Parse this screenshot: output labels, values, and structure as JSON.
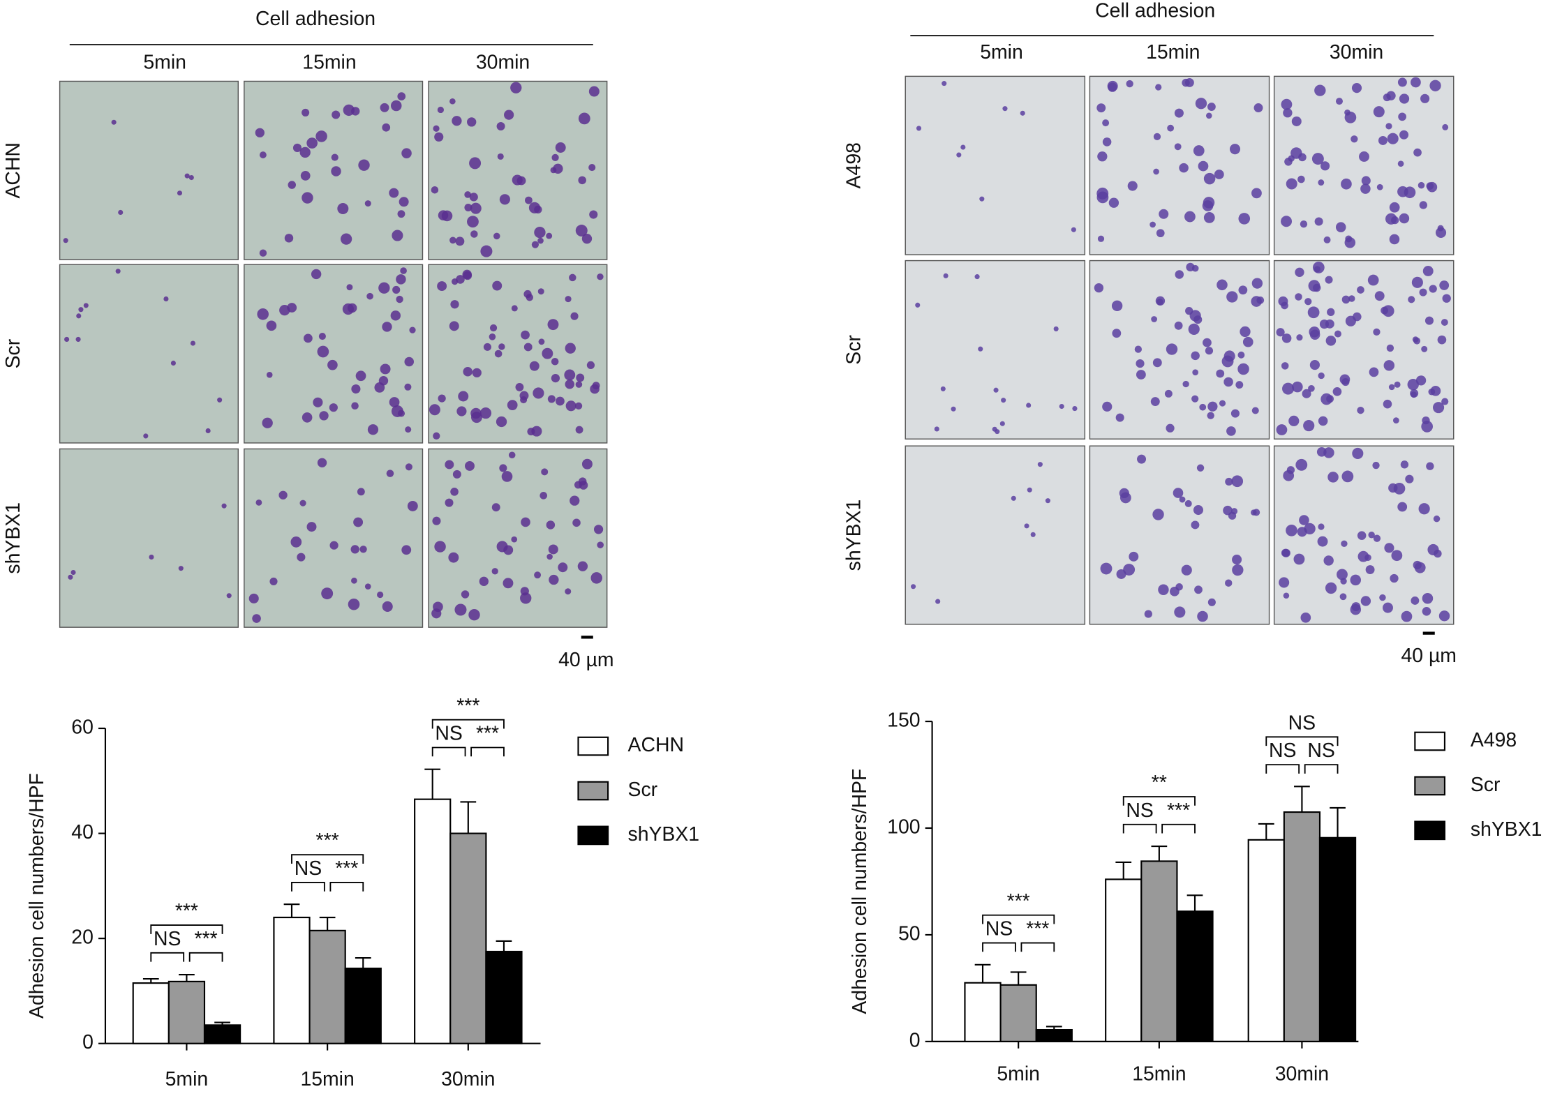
{
  "panels": [
    {
      "header": "Cell adhesion",
      "columns": [
        "5min",
        "15min",
        "30min"
      ],
      "rows": [
        "ACHN",
        "Scr",
        "shYBX1"
      ],
      "scale_bar": "40 µm"
    },
    {
      "header": "Cell adhesion",
      "columns": [
        "5min",
        "15min",
        "30min"
      ],
      "rows": [
        "A498",
        "Scr",
        "shYBX1"
      ],
      "scale_bar": "40 µm"
    }
  ],
  "chart_data": [
    {
      "type": "bar",
      "y_label": "Adhesion cell numbers/HPF",
      "categories": [
        "5min",
        "15min",
        "30min"
      ],
      "series": [
        {
          "name": "ACHN",
          "color": "#ffffff",
          "values": [
            11.5,
            24,
            46.5
          ],
          "errors": [
            0.8,
            2.5,
            5.7
          ]
        },
        {
          "name": "Scr",
          "color": "#999999",
          "values": [
            11.8,
            21.5,
            40
          ],
          "errors": [
            1.3,
            2.5,
            6
          ]
        },
        {
          "name": "shYBX1",
          "color": "#000000",
          "values": [
            3.5,
            14.3,
            17.5
          ],
          "errors": [
            0.5,
            2,
            2
          ]
        }
      ],
      "significance": [
        [
          "NS",
          "***",
          "***"
        ],
        [
          "NS",
          "***",
          "***"
        ],
        [
          "NS",
          "***",
          "***"
        ]
      ],
      "ylim": [
        0,
        60
      ],
      "yticks": [
        0,
        20,
        40,
        60
      ]
    },
    {
      "type": "bar",
      "y_label": "Adhesion cell numbers/HPF",
      "categories": [
        "5min",
        "15min",
        "30min"
      ],
      "series": [
        {
          "name": "A498",
          "color": "#ffffff",
          "values": [
            27.5,
            76,
            94.5
          ],
          "errors": [
            8.5,
            8,
            7.5
          ]
        },
        {
          "name": "Scr",
          "color": "#999999",
          "values": [
            26.5,
            84.5,
            107.5
          ],
          "errors": [
            6,
            7,
            12
          ]
        },
        {
          "name": "shYBX1",
          "color": "#000000",
          "values": [
            5.5,
            61,
            95.5
          ],
          "errors": [
            1.5,
            7.5,
            14
          ]
        }
      ],
      "significance": [
        [
          "NS",
          "***",
          "***"
        ],
        [
          "NS",
          "***",
          "**"
        ],
        [
          "NS",
          "NS",
          "NS"
        ]
      ],
      "ylim": [
        0,
        150
      ],
      "yticks": [
        0,
        50,
        100,
        150
      ]
    }
  ]
}
